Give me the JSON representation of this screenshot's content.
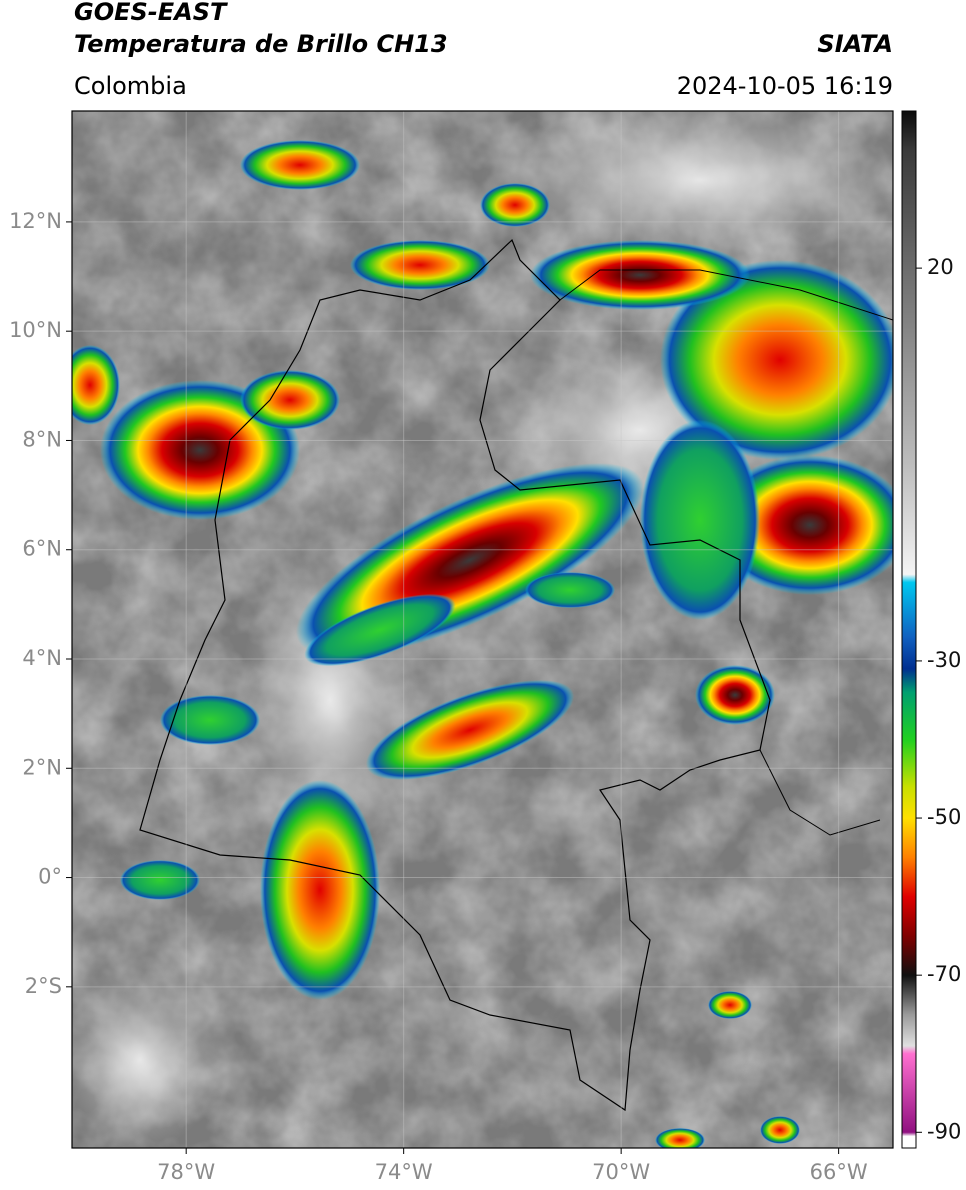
{
  "chart_data": {
    "type": "map",
    "title": "GOES-EAST",
    "subtitle": "Temperatura de Brillo CH13",
    "source": "SIATA",
    "region": "Colombia",
    "datetime": "2024-10-05 16:19",
    "xlim": [
      -80.1,
      -65
    ],
    "ylim": [
      -4.95,
      14.03
    ],
    "xticks": [
      {
        "value": -78,
        "label": "78°W"
      },
      {
        "value": -74,
        "label": "74°W"
      },
      {
        "value": -70,
        "label": "70°W"
      },
      {
        "value": -66,
        "label": "66°W"
      }
    ],
    "yticks": [
      {
        "value": 12,
        "label": "12°N"
      },
      {
        "value": 10,
        "label": "10°N"
      },
      {
        "value": 8,
        "label": "8°N"
      },
      {
        "value": 6,
        "label": "6°N"
      },
      {
        "value": 4,
        "label": "4°N"
      },
      {
        "value": 2,
        "label": "2°N"
      },
      {
        "value": 0,
        "label": "0°"
      },
      {
        "value": -2,
        "label": "2°S"
      }
    ],
    "grid": true,
    "colorbar": {
      "lim": [
        -92,
        40
      ],
      "ticks": [
        20,
        -30,
        -50,
        -70,
        -90
      ],
      "stops": [
        {
          "value": 40,
          "color": "#0a0a0a"
        },
        {
          "value": 35,
          "color": "#3a3a3a"
        },
        {
          "value": 20,
          "color": "#6c6c6c"
        },
        {
          "value": -5,
          "color": "#bdbdbd"
        },
        {
          "value": -19,
          "color": "#f4f4f4"
        },
        {
          "value": -20,
          "color": "#00c8f0"
        },
        {
          "value": -27,
          "color": "#1060c0"
        },
        {
          "value": -31,
          "color": "#002f90"
        },
        {
          "value": -34,
          "color": "#00a070"
        },
        {
          "value": -40,
          "color": "#20d020"
        },
        {
          "value": -46,
          "color": "#c8e000"
        },
        {
          "value": -50,
          "color": "#ffe000"
        },
        {
          "value": -55,
          "color": "#ff8000"
        },
        {
          "value": -60,
          "color": "#e00000"
        },
        {
          "value": -65,
          "color": "#800000"
        },
        {
          "value": -70,
          "color": "#101010"
        },
        {
          "value": -75,
          "color": "#9a9a9a"
        },
        {
          "value": -79,
          "color": "#e0e0e0"
        },
        {
          "value": -80,
          "color": "#ff70d0"
        },
        {
          "value": -90,
          "color": "#901080"
        },
        {
          "value": -90.5,
          "color": "#ffffff"
        },
        {
          "value": -92,
          "color": "#ffffff"
        }
      ]
    }
  }
}
